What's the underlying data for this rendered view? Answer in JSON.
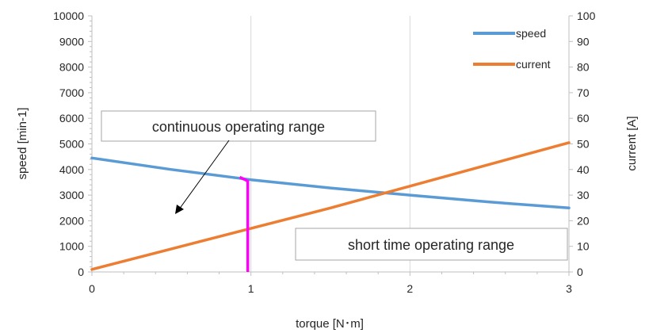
{
  "chart_data": {
    "type": "line",
    "x": [
      0,
      0.5,
      1,
      1.5,
      2,
      2.5,
      3
    ],
    "xlabel": "torque [N･m]",
    "ylabel": "speed [min-1]",
    "y2label": "current [A]",
    "xlim": [
      0,
      3
    ],
    "ylim": [
      0,
      10000
    ],
    "y2lim": [
      0,
      100
    ],
    "x_ticks": [
      "0",
      "1",
      "2",
      "3"
    ],
    "y_ticks": [
      "0",
      "1000",
      "2000",
      "3000",
      "4000",
      "5000",
      "6000",
      "7000",
      "8000",
      "9000",
      "10000"
    ],
    "y2_ticks": [
      "0",
      "10",
      "20",
      "30",
      "40",
      "50",
      "60",
      "70",
      "80",
      "90",
      "100"
    ],
    "grid": "vertical",
    "legend_position": "top-right",
    "series": [
      {
        "name": "speed",
        "axis": "left",
        "color": "#5b9bd5",
        "values": [
          4450,
          4000,
          3600,
          3280,
          3000,
          2730,
          2500
        ]
      },
      {
        "name": "current",
        "axis": "right",
        "color": "#ed7d31",
        "values": [
          1,
          9,
          17,
          25,
          33.5,
          42,
          50.5
        ]
      }
    ],
    "boundary": {
      "color": "#ff00ff",
      "points": [
        [
          0.93,
          3700
        ],
        [
          0.98,
          3550
        ],
        [
          0.98,
          0
        ]
      ]
    },
    "annotations": {
      "continuous": "continuous operating range",
      "short_time": "short time operating range"
    }
  }
}
